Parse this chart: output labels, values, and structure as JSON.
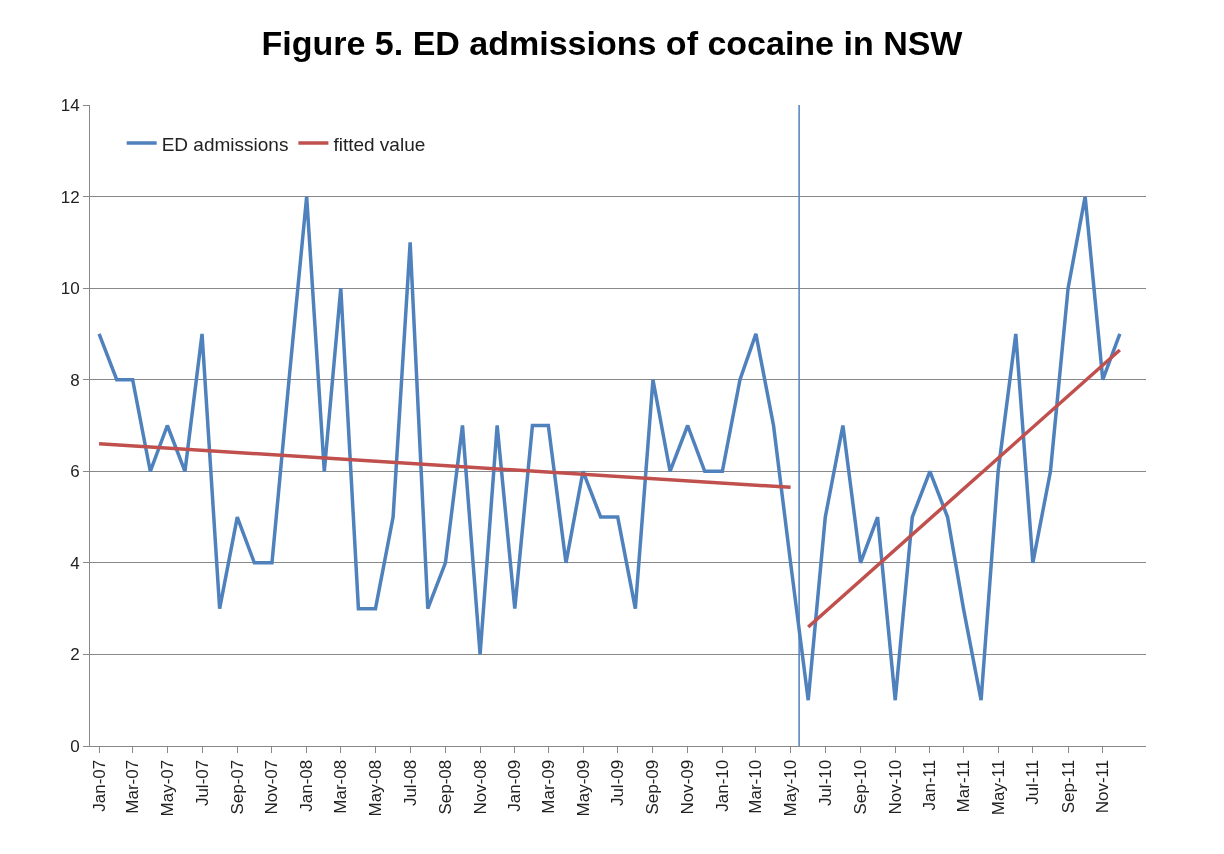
{
  "chart_data": {
    "type": "line",
    "title": "Figure 5. ED admissions of cocaine in NSW",
    "x": [
      "2007-01",
      "2007-02",
      "2007-03",
      "2007-04",
      "2007-05",
      "2007-06",
      "2007-07",
      "2007-08",
      "2007-09",
      "2007-10",
      "2007-11",
      "2007-12",
      "2008-01",
      "2008-02",
      "2008-03",
      "2008-04",
      "2008-05",
      "2008-06",
      "2008-07",
      "2008-08",
      "2008-09",
      "2008-10",
      "2008-11",
      "2008-12",
      "2009-01",
      "2009-02",
      "2009-03",
      "2009-04",
      "2009-05",
      "2009-06",
      "2009-07",
      "2009-08",
      "2009-09",
      "2009-10",
      "2009-11",
      "2009-12",
      "2010-01",
      "2010-02",
      "2010-03",
      "2010-04",
      "2010-05",
      "2010-06",
      "2010-07",
      "2010-08",
      "2010-09",
      "2010-10",
      "2010-11",
      "2010-12",
      "2011-01",
      "2011-02",
      "2011-03",
      "2011-04",
      "2011-05",
      "2011-06",
      "2011-07",
      "2011-08",
      "2011-09",
      "2011-10",
      "2011-11",
      "2011-12"
    ],
    "series": [
      {
        "name": "ED admissions",
        "color": "#4f81bd",
        "values": [
          9,
          8,
          8,
          6,
          7,
          6,
          9,
          3,
          5,
          4,
          4,
          8,
          12,
          6,
          10,
          3,
          3,
          5,
          11,
          3,
          4,
          7,
          2,
          7,
          3,
          7,
          7,
          4,
          6,
          5,
          5,
          3,
          8,
          6,
          7,
          6,
          6,
          8,
          9,
          7,
          4,
          1,
          5,
          7,
          4,
          5,
          1,
          5,
          6,
          5,
          3,
          1,
          6,
          9,
          4,
          6,
          10,
          12,
          8,
          9
        ]
      },
      {
        "name": "fitted value",
        "color": "#c0504d",
        "x": [
          "2007-01",
          "2010-05"
        ],
        "values": [
          6.6,
          5.65
        ]
      },
      {
        "color": "#c0504d",
        "x": [
          "2010-06",
          "2011-12"
        ],
        "values": [
          2.6,
          8.65
        ]
      }
    ],
    "xlim": [
      "2006-12-16",
      "2012-01-16"
    ],
    "xticks": [
      {
        "value": "2007-01",
        "label": "Jan-07"
      },
      {
        "value": "2007-03",
        "label": "Mar-07"
      },
      {
        "value": "2007-05",
        "label": "May-07"
      },
      {
        "value": "2007-07",
        "label": "Jul-07"
      },
      {
        "value": "2007-09",
        "label": "Sep-07"
      },
      {
        "value": "2007-11",
        "label": "Nov-07"
      },
      {
        "value": "2008-01",
        "label": "Jan-08"
      },
      {
        "value": "2008-03",
        "label": "Mar-08"
      },
      {
        "value": "2008-05",
        "label": "May-08"
      },
      {
        "value": "2008-07",
        "label": "Jul-08"
      },
      {
        "value": "2008-09",
        "label": "Sep-08"
      },
      {
        "value": "2008-11",
        "label": "Nov-08"
      },
      {
        "value": "2009-01",
        "label": "Jan-09"
      },
      {
        "value": "2009-03",
        "label": "Mar-09"
      },
      {
        "value": "2009-05",
        "label": "May-09"
      },
      {
        "value": "2009-07",
        "label": "Jul-09"
      },
      {
        "value": "2009-09",
        "label": "Sep-09"
      },
      {
        "value": "2009-11",
        "label": "Nov-09"
      },
      {
        "value": "2010-01",
        "label": "Jan-10"
      },
      {
        "value": "2010-03",
        "label": "Mar-10"
      },
      {
        "value": "2010-05",
        "label": "May-10"
      },
      {
        "value": "2010-07",
        "label": "Jul-10"
      },
      {
        "value": "2010-09",
        "label": "Sep-10"
      },
      {
        "value": "2010-11",
        "label": "Nov-10"
      },
      {
        "value": "2011-01",
        "label": "Jan-11"
      },
      {
        "value": "2011-03",
        "label": "Mar-11"
      },
      {
        "value": "2011-05",
        "label": "May-11"
      },
      {
        "value": "2011-07",
        "label": "Jul-11"
      },
      {
        "value": "2011-09",
        "label": "Sep-11"
      },
      {
        "value": "2011-11",
        "label": "Nov-11"
      }
    ],
    "ylim": [
      0,
      14
    ],
    "yticks": [
      0,
      2,
      4,
      6,
      8,
      10,
      12,
      14
    ],
    "ref_lines": [
      {
        "axis": "x",
        "value": "2010-05-16",
        "color": "#4f81bd"
      }
    ],
    "grid": "y",
    "legend": "top left",
    "marker": "none",
    "line_style": "solid"
  }
}
